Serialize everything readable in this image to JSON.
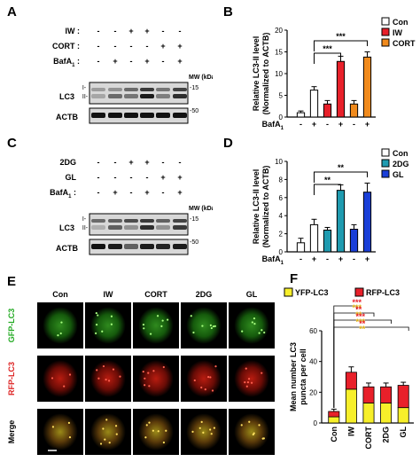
{
  "panels": {
    "A": {
      "letter": "A",
      "rows": [
        {
          "label": "IW :",
          "signs": [
            "-",
            "-",
            "+",
            "+",
            "-",
            "-"
          ]
        },
        {
          "label": "CORT :",
          "signs": [
            "-",
            "-",
            "-",
            "-",
            "+",
            "+"
          ]
        },
        {
          "label": "BafA",
          "sub": "1",
          "suffix": ":",
          "signs": [
            "-",
            "+",
            "-",
            "+",
            "-",
            "+"
          ]
        }
      ],
      "mw_label": "MW (kDa)",
      "blots": [
        {
          "name": "LC3",
          "marks": [
            "I-",
            "II-"
          ],
          "mw": "-15"
        },
        {
          "name": "ACTB",
          "marks": [],
          "mw": "-50"
        }
      ]
    },
    "C": {
      "letter": "C",
      "rows": [
        {
          "label": "2DG",
          "signs": [
            "-",
            "-",
            "+",
            "+",
            "-",
            "-"
          ]
        },
        {
          "label": "GL",
          "signs": [
            "-",
            "-",
            "-",
            "-",
            "+",
            "+"
          ]
        },
        {
          "label": "BafA",
          "sub": "1",
          "suffix": ":",
          "signs": [
            "-",
            "+",
            "-",
            "+",
            "-",
            "+"
          ]
        }
      ],
      "mw_label": "MW (kDa)",
      "blots": [
        {
          "name": "LC3",
          "marks": [
            "I-",
            "II-"
          ],
          "mw": "-15"
        },
        {
          "name": "ACTB",
          "marks": [],
          "mw": "-50"
        }
      ]
    },
    "E": {
      "letter": "E",
      "columns": [
        "Con",
        "IW",
        "CORT",
        "2DG",
        "GL"
      ],
      "rows": [
        "GFP-LC3",
        "RFP-LC3",
        "Merge"
      ],
      "row_colors": [
        "#22aa22",
        "#dd2222",
        "#000000"
      ]
    }
  },
  "chart_data": [
    {
      "panel": "B",
      "type": "bar",
      "ylabel": "Relative LC3-II level",
      "ylabel2": "(Normalized to ACTB)",
      "ylim": [
        0,
        20
      ],
      "yticks": [
        0,
        5,
        10,
        15,
        20
      ],
      "xlabel": "BafA",
      "xlabel_sub": "1",
      "categories": [
        "-",
        "+",
        "-",
        "+",
        "-",
        "+"
      ],
      "values": [
        1.0,
        6.2,
        3.0,
        12.8,
        3.0,
        13.8
      ],
      "errors": [
        0.4,
        0.8,
        0.8,
        1.2,
        0.8,
        1.2
      ],
      "bar_colors": [
        "#ffffff",
        "#ffffff",
        "#e8202a",
        "#e8202a",
        "#f08a1c",
        "#f08a1c"
      ],
      "legend": [
        {
          "name": "Con",
          "color": "#ffffff"
        },
        {
          "name": "IW",
          "color": "#e8202a"
        },
        {
          "name": "CORT",
          "color": "#f08a1c"
        }
      ],
      "legend_position": "top-right",
      "significance": [
        {
          "from": 1,
          "to": 3,
          "label": "***"
        },
        {
          "from": 1,
          "to": 5,
          "label": "***"
        }
      ]
    },
    {
      "panel": "D",
      "type": "bar",
      "ylabel": "Relative LC3-II level",
      "ylabel2": "(Normalized to ACTB)",
      "ylim": [
        0,
        10
      ],
      "yticks": [
        0,
        2,
        4,
        6,
        8,
        10
      ],
      "xlabel": "BafA",
      "xlabel_sub": "1",
      "categories": [
        "-",
        "+",
        "-",
        "+",
        "-",
        "+"
      ],
      "values": [
        1.0,
        3.0,
        2.4,
        6.8,
        2.5,
        6.6
      ],
      "errors": [
        0.5,
        0.6,
        0.3,
        0.6,
        0.5,
        1.0
      ],
      "bar_colors": [
        "#ffffff",
        "#ffffff",
        "#1f9bb0",
        "#1f9bb0",
        "#1a3fd8",
        "#1a3fd8"
      ],
      "legend": [
        {
          "name": "Con",
          "color": "#ffffff"
        },
        {
          "name": "2DG",
          "color": "#1f9bb0"
        },
        {
          "name": "GL",
          "color": "#1a3fd8"
        }
      ],
      "legend_position": "top-right",
      "significance": [
        {
          "from": 1,
          "to": 3,
          "label": "**"
        },
        {
          "from": 1,
          "to": 5,
          "label": "**"
        }
      ]
    },
    {
      "panel": "F",
      "type": "bar",
      "stacked": true,
      "ylabel": "Mean number LC3",
      "ylabel2": "puncta per cell",
      "ylim": [
        0,
        60
      ],
      "yticks": [
        0,
        20,
        40,
        60
      ],
      "categories": [
        "Con",
        "IW",
        "CORT",
        "2DG",
        "GL"
      ],
      "series": [
        {
          "name": "YFP-LC3",
          "color": "#f7ef2a",
          "values": [
            4,
            22,
            13,
            13,
            10
          ],
          "errors": [
            0.8,
            2.5,
            1.5,
            1.5,
            1.5
          ]
        },
        {
          "name": "RFP-LC3",
          "color": "#e8202a",
          "values": [
            3.5,
            11,
            10.5,
            10.5,
            14.5
          ],
          "errors": [
            1.5,
            3.5,
            2.5,
            2.5,
            2.0
          ]
        }
      ],
      "legend_position": "top",
      "significance": [
        {
          "to": 1,
          "red": "***",
          "yellow": "***"
        },
        {
          "to": 2,
          "red": "**",
          "yellow": "**"
        },
        {
          "to": 3,
          "red": "***",
          "yellow": "***"
        },
        {
          "to": 4,
          "red": "**",
          "yellow": "**"
        }
      ]
    }
  ]
}
